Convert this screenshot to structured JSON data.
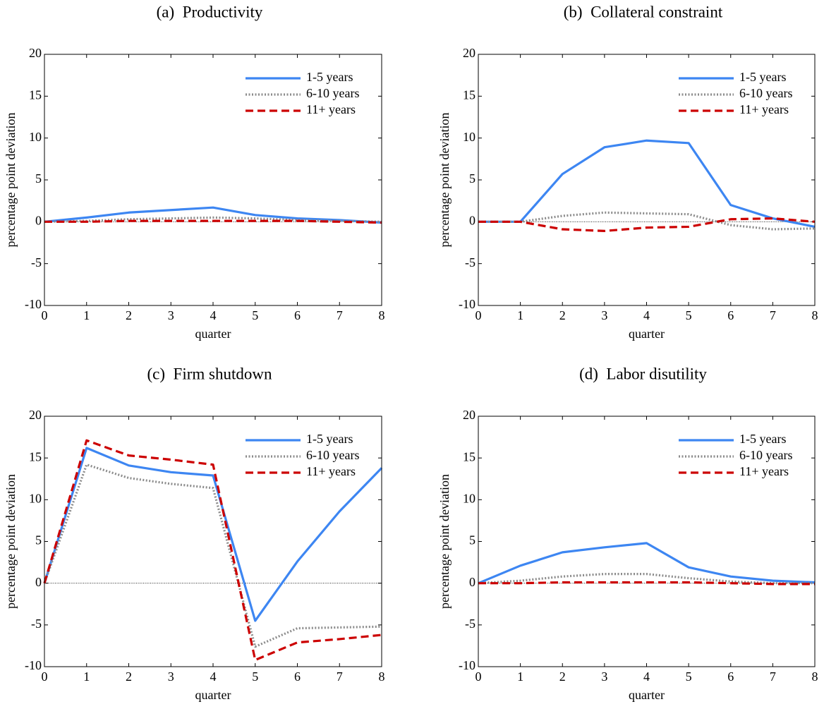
{
  "chart_data": [
    {
      "type": "line",
      "title": "(a)  Productivity",
      "xlabel": "quarter",
      "ylabel": "percentage point deviation",
      "x": [
        0,
        1,
        2,
        3,
        4,
        5,
        6,
        7,
        8
      ],
      "xlim": [
        0,
        8
      ],
      "xticks": [
        0,
        1,
        2,
        3,
        4,
        5,
        6,
        7,
        8
      ],
      "ylim": [
        -10,
        20
      ],
      "yticks": [
        -10,
        -5,
        0,
        5,
        10,
        15,
        20
      ],
      "hline": 0,
      "legend": "upper right",
      "series": [
        {
          "name": "1-5 years",
          "color": "#3d86f2",
          "style": "solid",
          "values": [
            0,
            0.5,
            1.1,
            1.4,
            1.7,
            0.8,
            0.4,
            0.2,
            -0.1
          ]
        },
        {
          "name": "6-10 years",
          "color": "#8c8c8c",
          "style": "dotted",
          "values": [
            0,
            0.1,
            0.3,
            0.4,
            0.5,
            0.4,
            0.2,
            0.1,
            0
          ]
        },
        {
          "name": "11+ years",
          "color": "#cc0000",
          "style": "dashed",
          "values": [
            0,
            0,
            0.1,
            0.1,
            0.1,
            0.1,
            0.1,
            0,
            -0.1
          ]
        }
      ]
    },
    {
      "type": "line",
      "title": "(b)  Collateral constraint",
      "xlabel": "quarter",
      "ylabel": "percentage point deviation",
      "x": [
        0,
        1,
        2,
        3,
        4,
        5,
        6,
        7,
        8
      ],
      "xlim": [
        0,
        8
      ],
      "xticks": [
        0,
        1,
        2,
        3,
        4,
        5,
        6,
        7,
        8
      ],
      "ylim": [
        -10,
        20
      ],
      "yticks": [
        -10,
        -5,
        0,
        5,
        10,
        15,
        20
      ],
      "hline": 0,
      "legend": "upper right",
      "series": [
        {
          "name": "1-5 years",
          "color": "#3d86f2",
          "style": "solid",
          "values": [
            0,
            0,
            5.7,
            8.9,
            9.7,
            9.4,
            2.0,
            0.4,
            -0.6
          ]
        },
        {
          "name": "6-10 years",
          "color": "#8c8c8c",
          "style": "dotted",
          "values": [
            0,
            0,
            0.7,
            1.1,
            1.0,
            0.9,
            -0.4,
            -0.9,
            -0.8
          ]
        },
        {
          "name": "11+ years",
          "color": "#cc0000",
          "style": "dashed",
          "values": [
            0,
            0,
            -0.9,
            -1.1,
            -0.7,
            -0.6,
            0.3,
            0.4,
            0.0
          ]
        }
      ]
    },
    {
      "type": "line",
      "title": "(c)  Firm shutdown",
      "xlabel": "quarter",
      "ylabel": "percentage point deviation",
      "x": [
        0,
        1,
        2,
        3,
        4,
        5,
        6,
        7,
        8
      ],
      "xlim": [
        0,
        8
      ],
      "xticks": [
        0,
        1,
        2,
        3,
        4,
        5,
        6,
        7,
        8
      ],
      "ylim": [
        -10,
        20
      ],
      "yticks": [
        -10,
        -5,
        0,
        5,
        10,
        15,
        20
      ],
      "hline": 0,
      "legend": "upper right",
      "series": [
        {
          "name": "1-5 years",
          "color": "#3d86f2",
          "style": "solid",
          "values": [
            0,
            16.2,
            14.1,
            13.3,
            12.9,
            -4.5,
            2.6,
            8.6,
            13.8
          ]
        },
        {
          "name": "6-10 years",
          "color": "#8c8c8c",
          "style": "dotted",
          "values": [
            0,
            14.2,
            12.6,
            11.9,
            11.4,
            -7.6,
            -5.4,
            -5.3,
            -5.2
          ]
        },
        {
          "name": "11+ years",
          "color": "#cc0000",
          "style": "dashed",
          "values": [
            0,
            17.1,
            15.3,
            14.8,
            14.2,
            -9.2,
            -7.1,
            -6.7,
            -6.2
          ]
        }
      ]
    },
    {
      "type": "line",
      "title": "(d)  Labor disutility",
      "xlabel": "quarter",
      "ylabel": "percentage point deviation",
      "x": [
        0,
        1,
        2,
        3,
        4,
        5,
        6,
        7,
        8
      ],
      "xlim": [
        0,
        8
      ],
      "xticks": [
        0,
        1,
        2,
        3,
        4,
        5,
        6,
        7,
        8
      ],
      "ylim": [
        -10,
        20
      ],
      "yticks": [
        -10,
        -5,
        0,
        5,
        10,
        15,
        20
      ],
      "hline": 0,
      "legend": "upper right",
      "series": [
        {
          "name": "1-5 years",
          "color": "#3d86f2",
          "style": "solid",
          "values": [
            0,
            2.1,
            3.7,
            4.3,
            4.8,
            1.9,
            0.8,
            0.3,
            0.1
          ]
        },
        {
          "name": "6-10 years",
          "color": "#8c8c8c",
          "style": "dotted",
          "values": [
            0,
            0.3,
            0.8,
            1.1,
            1.1,
            0.6,
            0.2,
            0,
            0
          ]
        },
        {
          "name": "11+ years",
          "color": "#cc0000",
          "style": "dashed",
          "values": [
            0,
            0,
            0.1,
            0.1,
            0.1,
            0.1,
            0,
            -0.1,
            -0.1
          ]
        }
      ]
    }
  ]
}
